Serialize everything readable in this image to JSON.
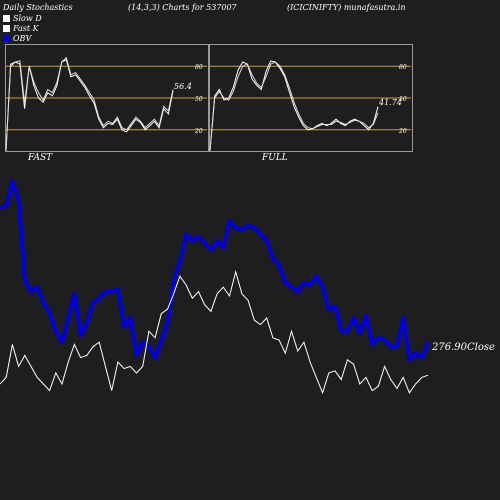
{
  "header": {
    "left": "Daily Stochastics",
    "params": "(14,3,3) Charts for 537007",
    "symbol": "(ICICINIFTY) munafasutra.in"
  },
  "legend": [
    {
      "label": "Slow  D",
      "color": "#ffffff"
    },
    {
      "label": "Fast K",
      "color": "#ffffff"
    },
    {
      "label": "OBV",
      "color": "#0000dd"
    }
  ],
  "colors": {
    "background": "#1e1e1e",
    "obv": "#0000dd",
    "price": "#ffffff",
    "level_lines": "#c8a030",
    "frame": "#9a9a9a"
  },
  "chart_data": [
    {
      "type": "line",
      "title": "FAST",
      "ylim": [
        0,
        100
      ],
      "yticks": [
        20,
        50,
        80
      ],
      "reference_lines": [
        20,
        50,
        80
      ],
      "last_value_label": "56.4",
      "series": [
        {
          "values": [
            0,
            80,
            84,
            82,
            40,
            80,
            62,
            50,
            46,
            55,
            52,
            62,
            84,
            86,
            70,
            72,
            66,
            60,
            52,
            45,
            30,
            22,
            26,
            25,
            30,
            20,
            18,
            24,
            30,
            27,
            20,
            24,
            28,
            22,
            40,
            35,
            56.4
          ]
        },
        {
          "values": [
            0,
            82,
            84,
            85,
            45,
            80,
            65,
            55,
            48,
            58,
            55,
            65,
            84,
            88,
            72,
            74,
            68,
            62,
            55,
            48,
            32,
            24,
            28,
            26,
            32,
            22,
            20,
            26,
            32,
            28,
            22,
            26,
            30,
            24,
            42,
            38,
            58
          ]
        }
      ]
    },
    {
      "type": "line",
      "title": "FULL",
      "ylim": [
        0,
        100
      ],
      "yticks": [
        20,
        50,
        80
      ],
      "reference_lines": [
        20,
        50,
        80
      ],
      "last_value_label": "41.74",
      "series": [
        {
          "values": [
            0,
            52,
            58,
            48,
            50,
            60,
            76,
            84,
            82,
            68,
            62,
            58,
            75,
            85,
            84,
            78,
            70,
            56,
            42,
            32,
            24,
            20,
            21,
            24,
            26,
            24,
            26,
            30,
            26,
            24,
            28,
            30,
            28,
            24,
            20,
            26,
            41.74
          ]
        },
        {
          "values": [
            0,
            50,
            56,
            50,
            48,
            56,
            70,
            80,
            82,
            72,
            64,
            60,
            70,
            82,
            84,
            80,
            72,
            60,
            46,
            35,
            26,
            22,
            21,
            23,
            25,
            25,
            25,
            28,
            27,
            25,
            27,
            29,
            28,
            26,
            22,
            25,
            36
          ]
        }
      ]
    },
    {
      "type": "line",
      "series": [
        {
          "name": "OBV",
          "values": [
            0.85,
            0.86,
            0.97,
            0.88,
            0.52,
            0.47,
            0.49,
            0.42,
            0.37,
            0.29,
            0.24,
            0.35,
            0.46,
            0.27,
            0.33,
            0.42,
            0.44,
            0.47,
            0.47,
            0.48,
            0.31,
            0.35,
            0.18,
            0.24,
            0.22,
            0.17,
            0.25,
            0.33,
            0.52,
            0.61,
            0.73,
            0.7,
            0.72,
            0.69,
            0.66,
            0.7,
            0.67,
            0.79,
            0.76,
            0.75,
            0.77,
            0.76,
            0.73,
            0.7,
            0.62,
            0.59,
            0.51,
            0.49,
            0.47,
            0.51,
            0.5,
            0.54,
            0.49,
            0.39,
            0.4,
            0.29,
            0.29,
            0.35,
            0.28,
            0.36,
            0.23,
            0.26,
            0.25,
            0.22,
            0.22,
            0.35,
            0.16,
            0.19,
            0.17,
            0.24
          ]
        },
        {
          "name": "Close",
          "last_value_label": "276.90Close",
          "values": [
            0.05,
            0.08,
            0.23,
            0.13,
            0.18,
            0.13,
            0.08,
            0.05,
            0.02,
            0.1,
            0.05,
            0.15,
            0.23,
            0.17,
            0.18,
            0.22,
            0.24,
            0.13,
            0.02,
            0.15,
            0.12,
            0.13,
            0.1,
            0.13,
            0.29,
            0.26,
            0.37,
            0.39,
            0.46,
            0.54,
            0.5,
            0.44,
            0.47,
            0.41,
            0.38,
            0.46,
            0.49,
            0.45,
            0.56,
            0.46,
            0.43,
            0.34,
            0.32,
            0.35,
            0.26,
            0.25,
            0.19,
            0.29,
            0.2,
            0.24,
            0.15,
            0.08,
            0.01,
            0.1,
            0.11,
            0.07,
            0.16,
            0.14,
            0.05,
            0.08,
            0.02,
            0.04,
            0.13,
            0.07,
            0.03,
            0.08,
            0.01,
            0.05,
            0.08,
            0.09
          ]
        }
      ]
    }
  ]
}
